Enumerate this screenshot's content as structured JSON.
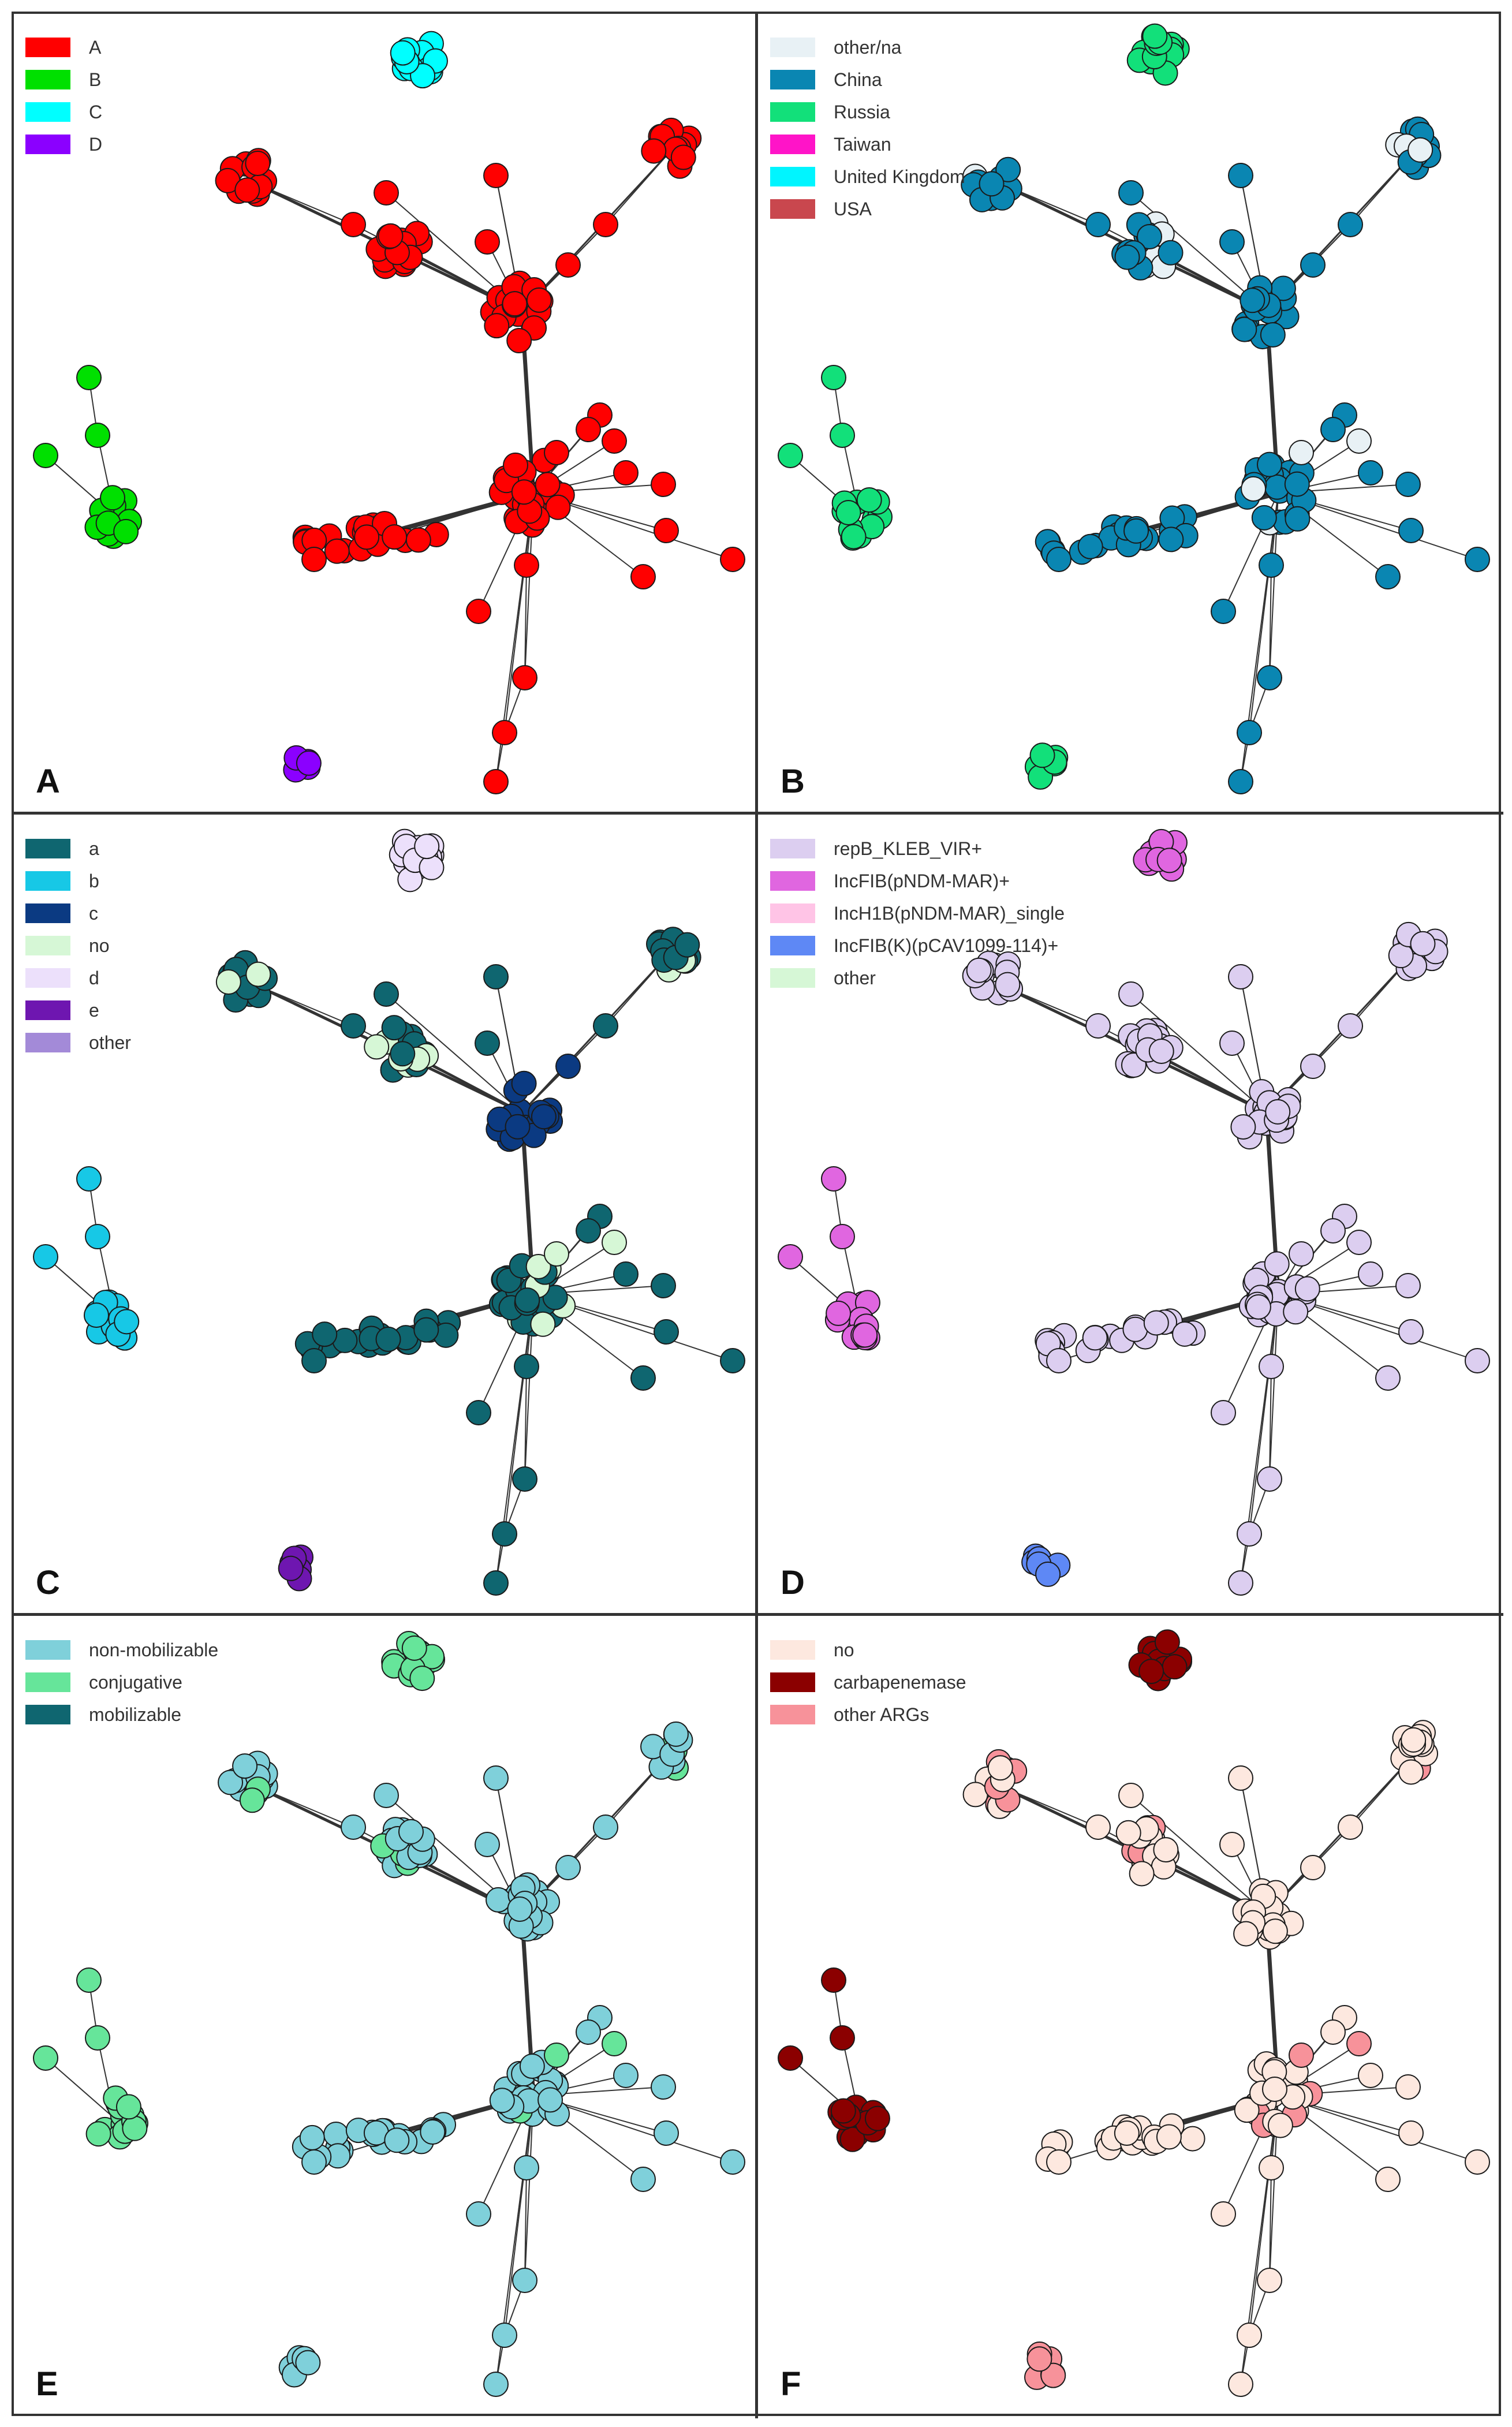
{
  "figure": {
    "panels": [
      {
        "id": "A",
        "letter": "A",
        "legend": [
          {
            "label": "A",
            "color": "#ff0000"
          },
          {
            "label": "B",
            "color": "#00e000"
          },
          {
            "label": "C",
            "color": "#00ffff"
          },
          {
            "label": "D",
            "color": "#8b00ff"
          }
        ],
        "scheme": {
          "c_top": "#00ffff",
          "c_left": "#00e000",
          "c_bottom": "#8b00ff",
          "main": "#ff0000",
          "mid": "#ff0000",
          "low": "#ff0000",
          "accent": "#ff0000"
        }
      },
      {
        "id": "B",
        "letter": "B",
        "legend": [
          {
            "label": "other/na",
            "color": "#e8f1f5"
          },
          {
            "label": "China",
            "color": "#0a86b2"
          },
          {
            "label": "Russia",
            "color": "#12e07a"
          },
          {
            "label": "Taiwan",
            "color": "#ff14c8"
          },
          {
            "label": "United Kingdom",
            "color": "#00f5ff"
          },
          {
            "label": "USA",
            "color": "#c9474e"
          }
        ],
        "scheme": {
          "c_top": "#12e07a",
          "c_left": "#12e07a",
          "c_bottom": "#12e07a",
          "main": "#0a86b2",
          "mid": "#0a86b2",
          "low": "#0a86b2",
          "accent": "#e8f1f5"
        }
      },
      {
        "id": "C",
        "letter": "C",
        "legend": [
          {
            "label": "a",
            "color": "#0f6670"
          },
          {
            "label": "b",
            "color": "#17c8e6"
          },
          {
            "label": "c",
            "color": "#0b3a82"
          },
          {
            "label": "no",
            "color": "#d6f7d6"
          },
          {
            "label": "d",
            "color": "#ece0fb"
          },
          {
            "label": "e",
            "color": "#6e16b0"
          },
          {
            "label": "other",
            "color": "#a38ad8"
          }
        ],
        "scheme": {
          "c_top": "#ece0fb",
          "c_left": "#17c8e6",
          "c_bottom": "#6e16b0",
          "main": "#0f6670",
          "mid": "#0b3a82",
          "low": "#0f6670",
          "accent": "#d6f7d6"
        }
      },
      {
        "id": "D",
        "letter": "D",
        "legend": [
          {
            "label": "repB_KLEB_VIR+",
            "color": "#dccef0"
          },
          {
            "label": "IncFIB(pNDM-MAR)+",
            "color": "#e066e0"
          },
          {
            "label": "IncH1B(pNDM-MAR)_single",
            "color": "#ffc4e6"
          },
          {
            "label": "IncFIB(K)(pCAV1099-114)+",
            "color": "#5e88f5"
          },
          {
            "label": "other",
            "color": "#d6f7d6"
          }
        ],
        "scheme": {
          "c_top": "#e066e0",
          "c_left": "#e066e0",
          "c_bottom": "#5e88f5",
          "main": "#dccef0",
          "mid": "#dccef0",
          "low": "#dccef0",
          "accent": "#dccef0"
        }
      },
      {
        "id": "E",
        "letter": "E",
        "legend": [
          {
            "label": "non-mobilizable",
            "color": "#7fd0da"
          },
          {
            "label": "conjugative",
            "color": "#66e59a"
          },
          {
            "label": "mobilizable",
            "color": "#0f6670"
          }
        ],
        "scheme": {
          "c_top": "#66e59a",
          "c_left": "#66e59a",
          "c_bottom": "#7fd0da",
          "main": "#7fd0da",
          "mid": "#7fd0da",
          "low": "#7fd0da",
          "accent": "#66e59a"
        }
      },
      {
        "id": "F",
        "letter": "F",
        "legend": [
          {
            "label": "no",
            "color": "#fde8df"
          },
          {
            "label": "carbapenemase",
            "color": "#8b0000"
          },
          {
            "label": "other ARGs",
            "color": "#f7929a"
          }
        ],
        "scheme": {
          "c_top": "#8b0000",
          "c_left": "#8b0000",
          "c_bottom": "#f7929a",
          "main": "#fde8df",
          "mid": "#fde8df",
          "low": "#fde8df",
          "accent": "#f7929a"
        }
      }
    ]
  }
}
